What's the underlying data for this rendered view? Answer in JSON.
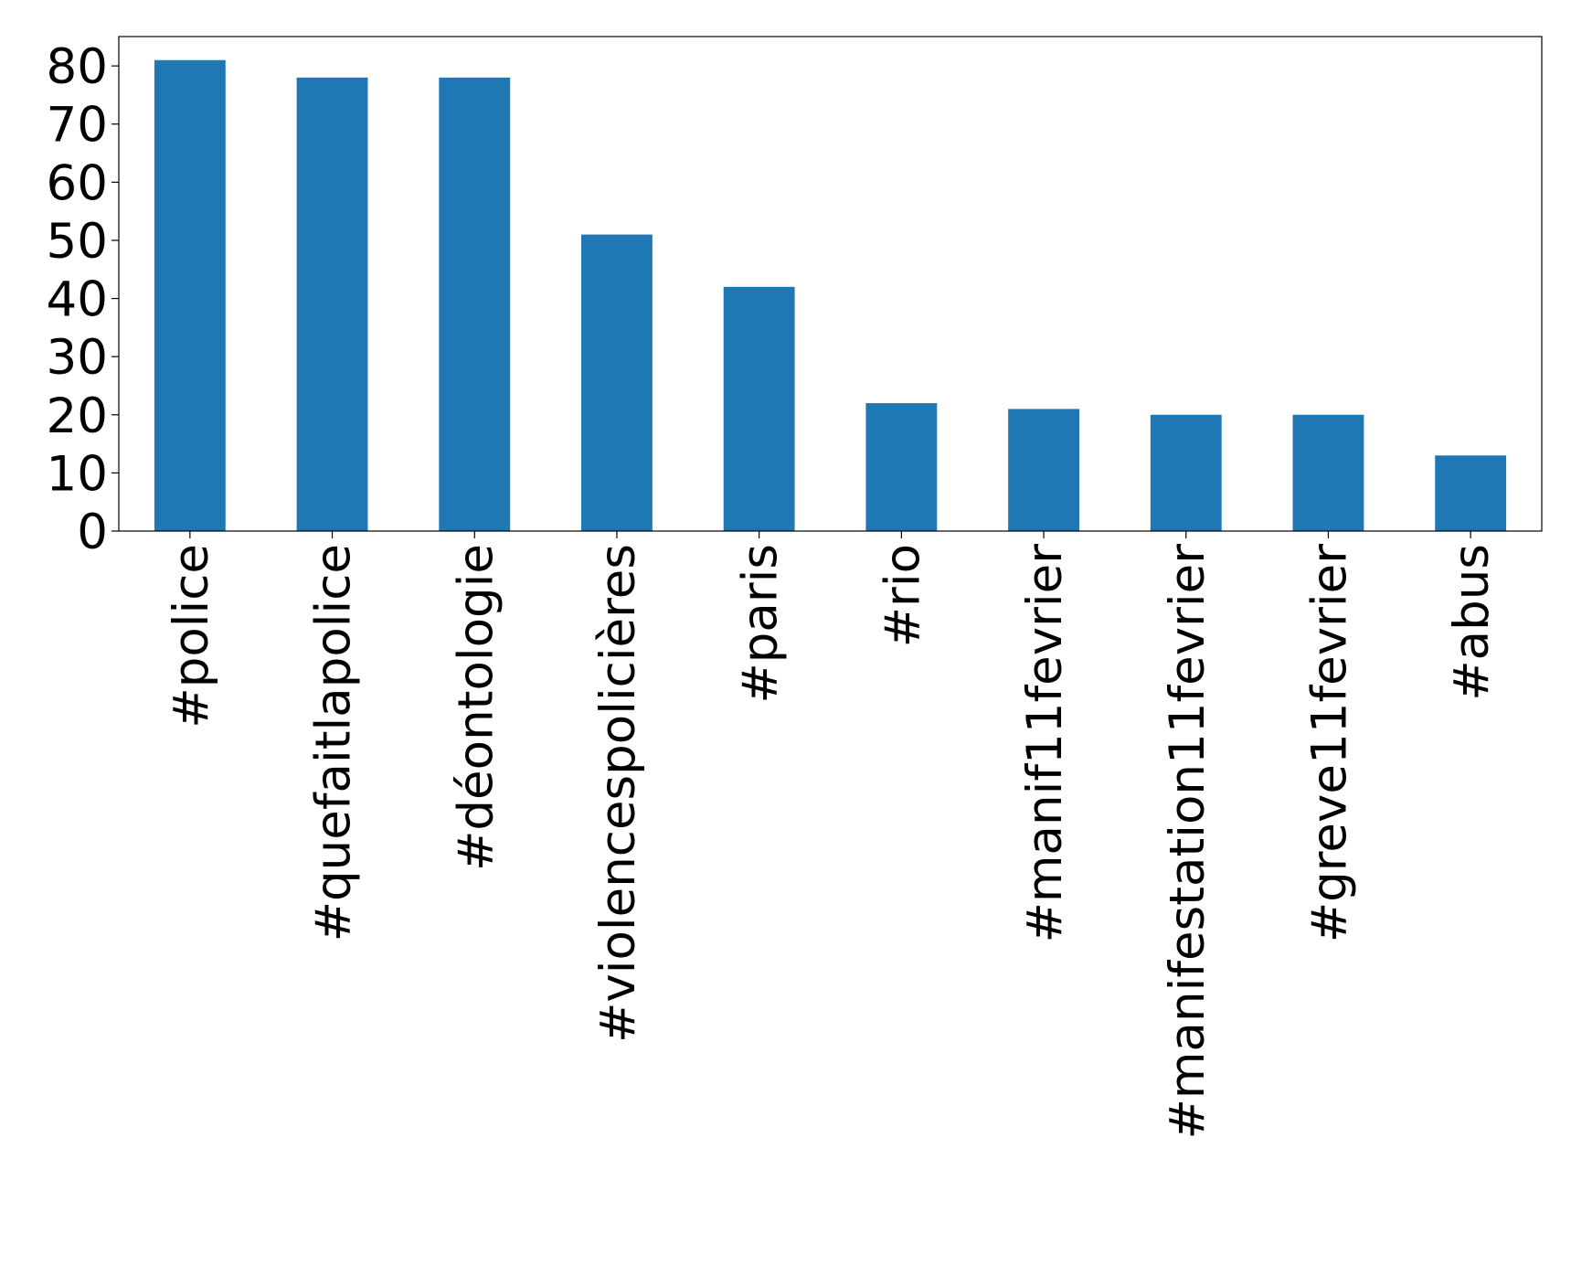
{
  "chart_data": {
    "type": "bar",
    "categories": [
      "#police",
      "#quefaitlapolice",
      "#déontologie",
      "#violencespolicières",
      "#paris",
      "#rio",
      "#manif11fevrier",
      "#manifestation11fevrier",
      "#greve11fevrier",
      "#abus"
    ],
    "values": [
      81,
      78,
      78,
      51,
      42,
      22,
      21,
      20,
      20,
      13
    ],
    "color": "#1f77b4",
    "ylim": [
      0,
      85.05
    ],
    "yticks": [
      0,
      10,
      20,
      30,
      40,
      50,
      60,
      70,
      80
    ],
    "grid": false
  }
}
